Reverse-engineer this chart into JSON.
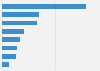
{
  "values": [
    31.37,
    13.83,
    13.23,
    8.13,
    6.59,
    5.47,
    5.2,
    2.65
  ],
  "bar_color": "#3d8ecf",
  "background_color": "#f2f2f2",
  "grid_color": "#cccccc",
  "figsize": [
    1.0,
    0.71
  ],
  "dpi": 100,
  "bar_height": 0.55,
  "xlim_max": 36
}
